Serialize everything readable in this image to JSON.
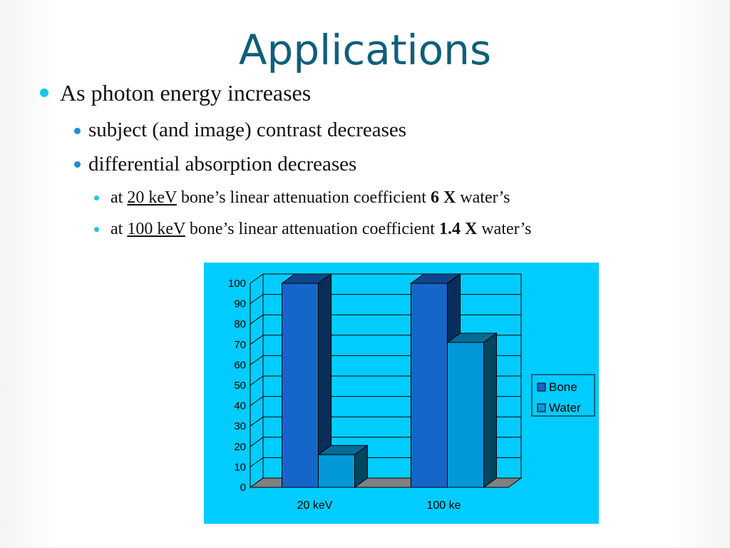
{
  "slide": {
    "title": "Applications",
    "bullet_1": "As photon energy increases",
    "bullet_2": "subject (and image) contrast decreases",
    "bullet_3": "differential absorption decreases",
    "bullet_4": {
      "prefix": "at ",
      "energy": "20 keV",
      "middle": " bone’s linear attenuation coefficient ",
      "factor": "6 X",
      "suffix": " water’s"
    },
    "bullet_5": {
      "prefix": "at ",
      "energy": "100 keV",
      "middle": " bone’s linear attenuation coefficient ",
      "factor": "1.4 X",
      "suffix": " water’s"
    }
  },
  "colors": {
    "title": "#0e5f7a",
    "panel_bg": "#00ccff",
    "bone": "#1566c8",
    "water": "#0399d8",
    "floor": "#808080"
  },
  "chart_data": {
    "type": "bar",
    "style": "3d-clustered-column",
    "categories": [
      "20 keV",
      "100 ke"
    ],
    "series": [
      {
        "name": "Bone",
        "values": [
          100,
          100
        ]
      },
      {
        "name": "Water",
        "values": [
          16,
          71
        ]
      }
    ],
    "ylim": [
      0,
      100
    ],
    "yticks": [
      "0",
      "10",
      "20",
      "30",
      "40",
      "50",
      "60",
      "70",
      "80",
      "90",
      "100"
    ],
    "grid": true,
    "legend": "right"
  }
}
